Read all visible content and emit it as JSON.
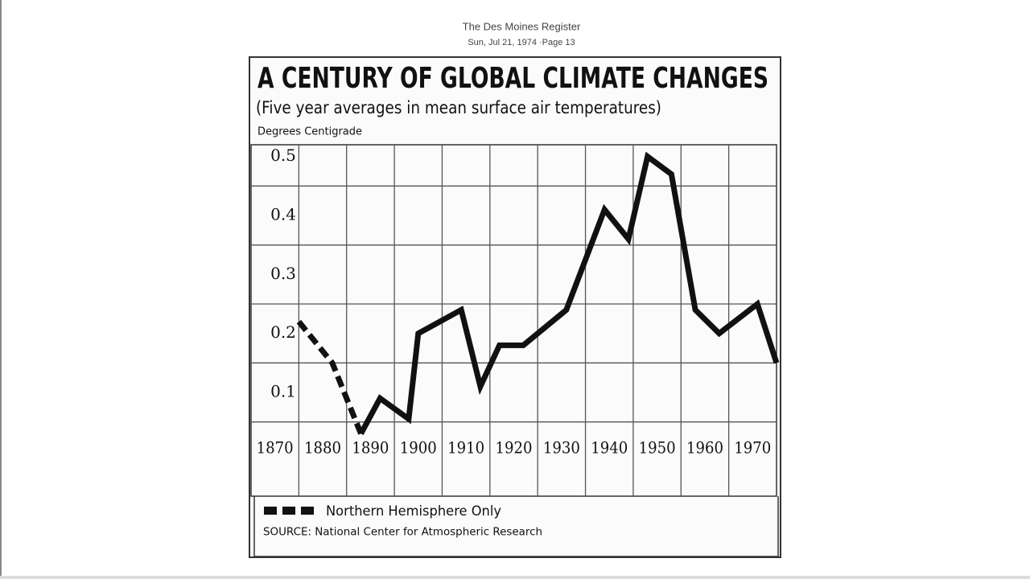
{
  "header": {
    "publication": "The Des Moines Register",
    "date": "Sun, Jul 21, 1974 ·Page 13"
  },
  "chart_data": {
    "type": "line",
    "title": "A CENTURY OF GLOBAL CLIMATE CHANGES",
    "subtitle": "(Five year averages in mean surface air temperatures)",
    "y_label": "Degrees Centigrade",
    "source": "SOURCE: National Center for Atmospheric Research",
    "series": [
      {
        "name": "Northern Hemisphere Only",
        "color": "#111",
        "dashed": true,
        "x": [
          1875,
          1882,
          1888
        ],
        "values": [
          0.22,
          0.15,
          0.03
        ]
      },
      {
        "color": "#111",
        "x": [
          1888,
          1892,
          1898,
          1900,
          1909,
          1913,
          1917,
          1922,
          1931,
          1939,
          1944,
          1948,
          1953,
          1958,
          1963,
          1971,
          1975
        ],
        "values": [
          0.03,
          0.09,
          0.055,
          0.2,
          0.24,
          0.11,
          0.18,
          0.18,
          0.24,
          0.41,
          0.36,
          0.5,
          0.47,
          0.24,
          0.2,
          0.25,
          0.15
        ]
      }
    ],
    "xlim": [
      1865,
      1975
    ],
    "xticks": [
      1870,
      1880,
      1890,
      1900,
      1910,
      1920,
      1930,
      1940,
      1950,
      1960,
      1970
    ],
    "ylim": [
      0.025,
      0.52
    ],
    "yticks": [
      0.1,
      0.2,
      0.3,
      0.4,
      0.5
    ],
    "grid": true
  }
}
